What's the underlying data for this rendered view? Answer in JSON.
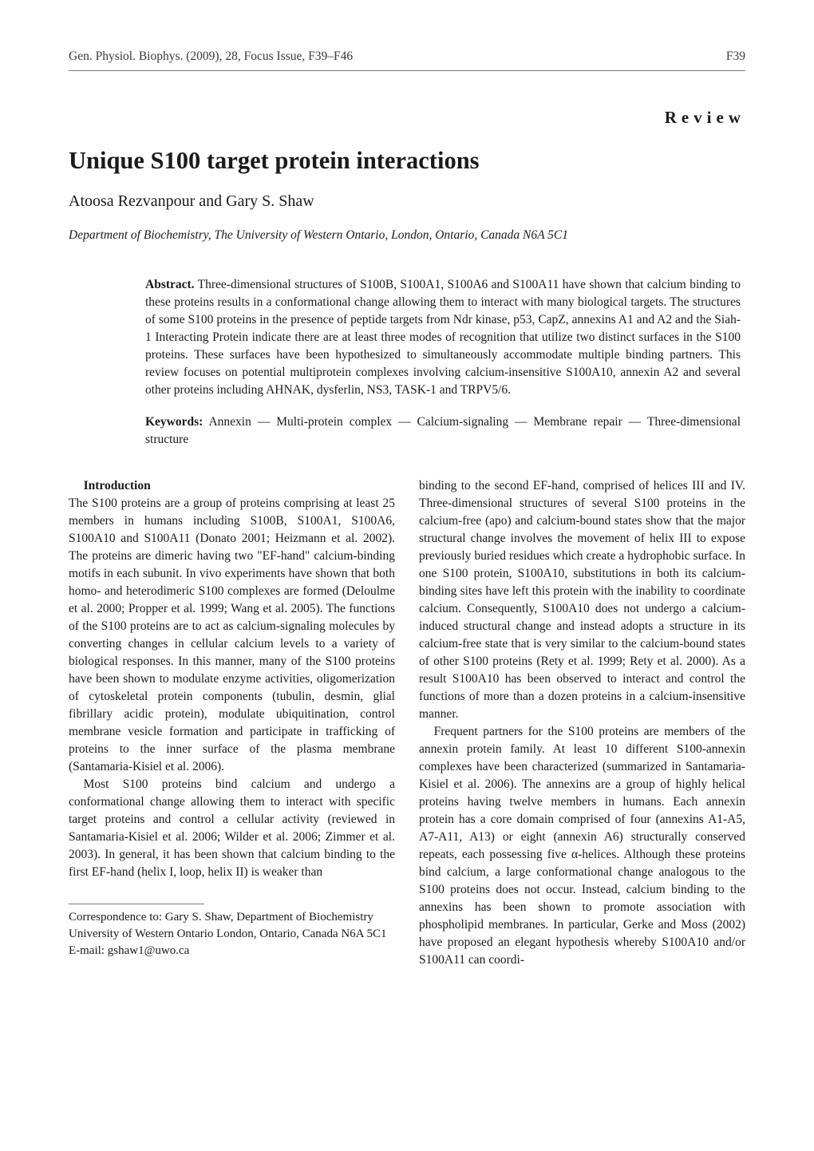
{
  "header": {
    "left": "Gen. Physiol. Biophys. (2009), 28, Focus Issue, F39–F46",
    "right": "F39"
  },
  "review_tag": "Review",
  "title": "Unique S100 target protein interactions",
  "authors": "Atoosa Rezvanpour and Gary S. Shaw",
  "affiliation": "Department of Biochemistry, The University of Western Ontario, London, Ontario, Canada N6A 5C1",
  "abstract": {
    "label": "Abstract.",
    "text": "Three-dimensional structures of S100B, S100A1, S100A6 and S100A11 have shown that calcium binding to these proteins results in a conformational change allowing them to interact with many biological targets. The structures of some S100 proteins in the presence of peptide targets from Ndr kinase, p53, CapZ, annexins A1 and A2 and the Siah-1 Interacting Protein indicate there are at least three modes of recognition that utilize two distinct surfaces in the S100 proteins. These surfaces have been hypothesized to simultaneously accommodate multiple binding partners. This review focuses on potential multiprotein complexes involving calcium-insensitive S100A10, annexin A2 and several other proteins including AHNAK, dysferlin, NS3, TASK-1 and TRPV5/6."
  },
  "keywords": {
    "label": "Keywords:",
    "text": "Annexin — Multi-protein complex — Calcium-signaling — Membrane repair — Three-dimensional structure"
  },
  "section_heading": "Introduction",
  "left_col": {
    "p1": "The S100 proteins are a group of proteins comprising at least 25 members in humans including S100B, S100A1, S100A6, S100A10 and S100A11 (Donato 2001; Heizmann et al. 2002). The proteins are dimeric having two \"EF-hand\" calcium-binding motifs in each subunit. In vivo experiments have shown that both homo- and heterodimeric S100 complexes are formed (Deloulme et al. 2000; Propper et al. 1999; Wang et al. 2005). The functions of the S100 proteins are to act as calcium-signaling molecules by converting changes in cellular calcium levels to a variety of biological responses. In this manner, many of the S100 proteins have been shown to modulate enzyme activities, oligomerization of cytoskeletal protein components (tubulin, desmin, glial fibrillary acidic protein), modulate ubiquitination, control membrane vesicle formation and participate in trafficking of proteins to the inner surface of the plasma membrane (Santamaria-Kisiel et al. 2006).",
    "p2": "Most S100 proteins bind calcium and undergo a conformational change allowing them to interact with specific target proteins and control a cellular activity (reviewed in Santamaria-Kisiel et al. 2006; Wilder et al. 2006; Zimmer et al. 2003). In general, it has been shown that calcium binding to the first EF-hand (helix I, loop, helix II) is weaker than"
  },
  "right_col": {
    "p1": "binding to the second EF-hand, comprised of helices III and IV. Three-dimensional structures of several S100 proteins in the calcium-free (apo) and calcium-bound states show that the major structural change involves the movement of helix III to expose previously buried residues which create a hydrophobic surface. In one S100 protein, S100A10, substitutions in both its calcium-binding sites have left this protein with the inability to coordinate calcium. Consequently, S100A10 does not undergo a calcium-induced structural change and instead adopts a structure in its calcium-free state that is very similar to the calcium-bound states of other S100 proteins (Rety et al. 1999; Rety et al. 2000). As a result S100A10 has been observed to interact and control the functions of more than a dozen proteins in a calcium-insensitive manner.",
    "p2": "Frequent partners for the S100 proteins are members of the annexin protein family. At least 10 different S100-annexin complexes have been characterized (summarized in Santamaria-Kisiel et al. 2006). The annexins are a group of highly helical proteins having twelve members in humans. Each annexin protein has a core domain comprised of four (annexins A1-A5, A7-A11, A13) or eight (annexin A6) structurally conserved repeats, each possessing five α-helices. Although these proteins bind calcium, a large conformational change analogous to the S100 proteins does not occur. Instead, calcium binding to the annexins has been shown to promote association with phospholipid membranes. In particular, Gerke and Moss (2002) have proposed an elegant hypothesis whereby S100A10 and/or S100A11 can coordi-"
  },
  "footnote": {
    "line1": "Correspondence to: Gary S. Shaw, Department of Biochemistry University of Western Ontario London, Ontario, Canada N6A 5C1",
    "line2": "E-mail: gshaw1@uwo.ca"
  }
}
